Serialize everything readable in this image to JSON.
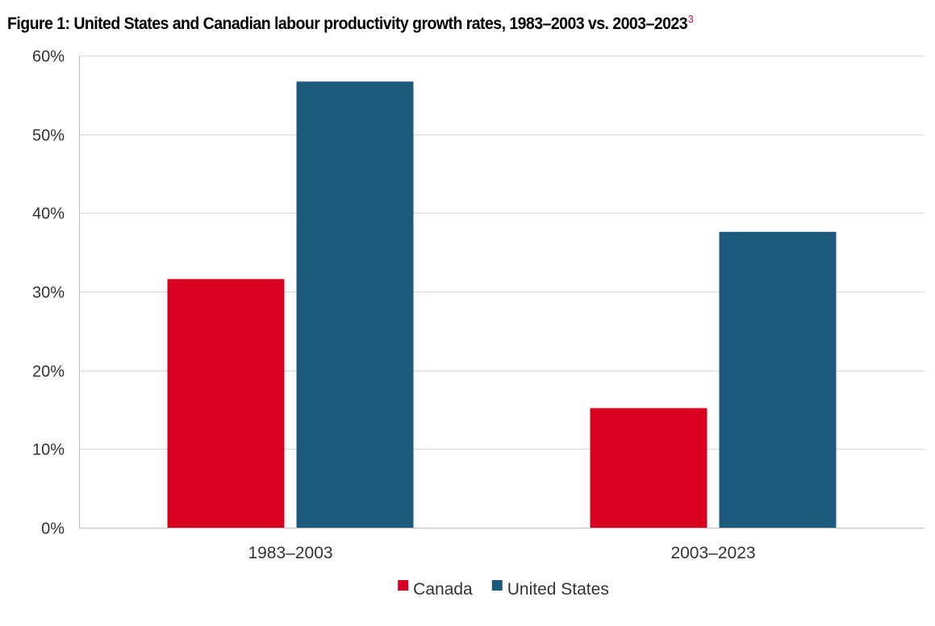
{
  "figure": {
    "title": "Figure 1: United States and Canadian labour productivity growth rates, 1983–2003 vs. 2003–2023",
    "footnote_marker": "3"
  },
  "chart_data": {
    "type": "bar",
    "categories": [
      "1983–2003",
      "2003–2023"
    ],
    "series": [
      {
        "name": "Canada",
        "values": [
          31.6,
          15.2
        ],
        "color": "#d9001f"
      },
      {
        "name": "United States",
        "values": [
          56.7,
          37.6
        ],
        "color": "#1c5a7d"
      }
    ],
    "ylim": [
      0,
      60
    ],
    "yticks": [
      0,
      10,
      20,
      30,
      40,
      50,
      60
    ],
    "ytick_labels": [
      "0%",
      "10%",
      "20%",
      "30%",
      "40%",
      "50%",
      "60%"
    ],
    "grid": true,
    "legend": "bottom-center",
    "xlabel": "",
    "ylabel": ""
  }
}
